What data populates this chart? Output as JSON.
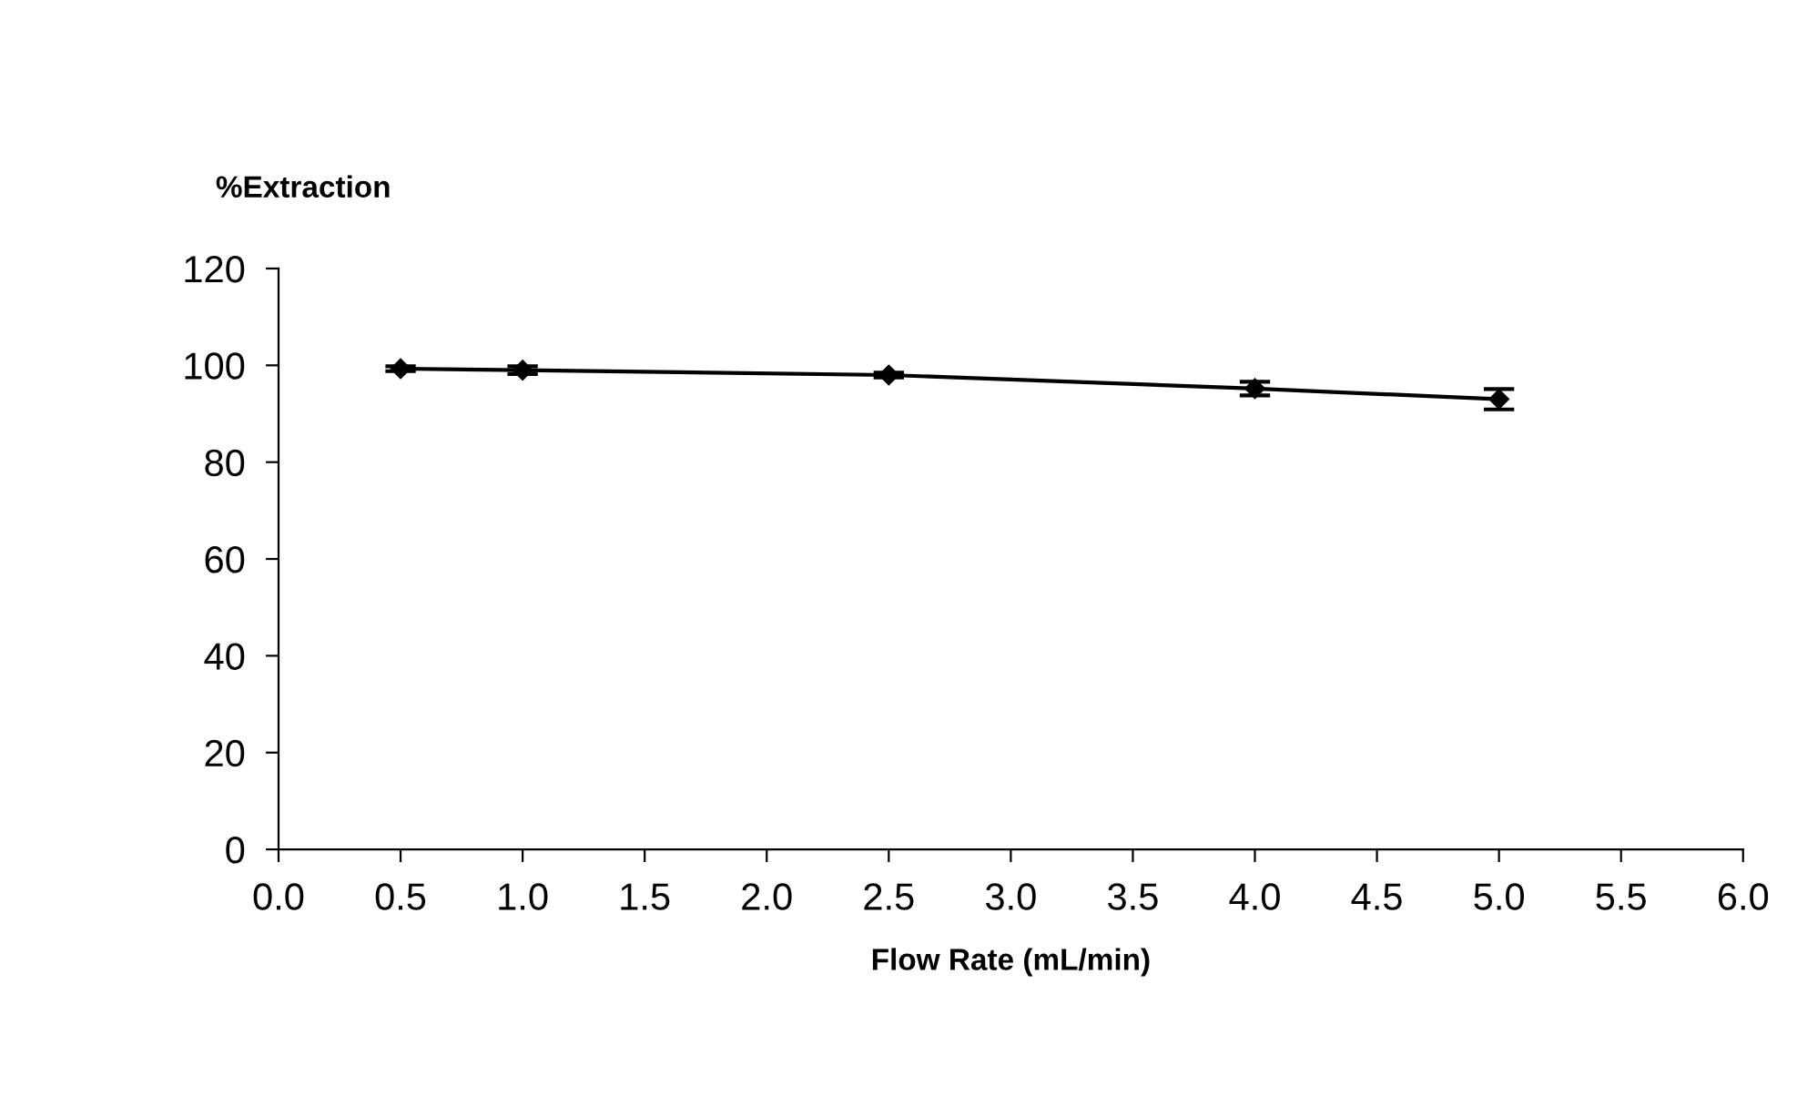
{
  "chart_data": {
    "type": "line",
    "ylabel": "%Extraction",
    "xlabel": "Flow Rate (mL/min)",
    "x": [
      0.5,
      1.0,
      2.5,
      4.0,
      5.0
    ],
    "series": [
      {
        "color": "#000000",
        "values": [
          99.3,
          99.0,
          98.0,
          95.2,
          93.0
        ],
        "errors": [
          0.5,
          0.8,
          0.5,
          1.4,
          2.1
        ]
      }
    ],
    "xlim": [
      0.0,
      6.0
    ],
    "xticks": [
      {
        "value": 0,
        "label": "0.0"
      },
      0.5,
      {
        "value": 1,
        "label": "1.0"
      },
      1.5,
      {
        "value": 2,
        "label": "2.0"
      },
      2.5,
      {
        "value": 3,
        "label": "3.0"
      },
      3.5,
      {
        "value": 4,
        "label": "4.0"
      },
      4.5,
      {
        "value": 5,
        "label": "5.0"
      },
      5.5,
      {
        "value": 6,
        "label": "6.0"
      }
    ],
    "ylim": [
      0,
      120
    ],
    "yticks": [
      0,
      20,
      40,
      60,
      80,
      100,
      120
    ],
    "grid": false,
    "legend": false,
    "marker": "diamond",
    "line_style": "solid"
  }
}
